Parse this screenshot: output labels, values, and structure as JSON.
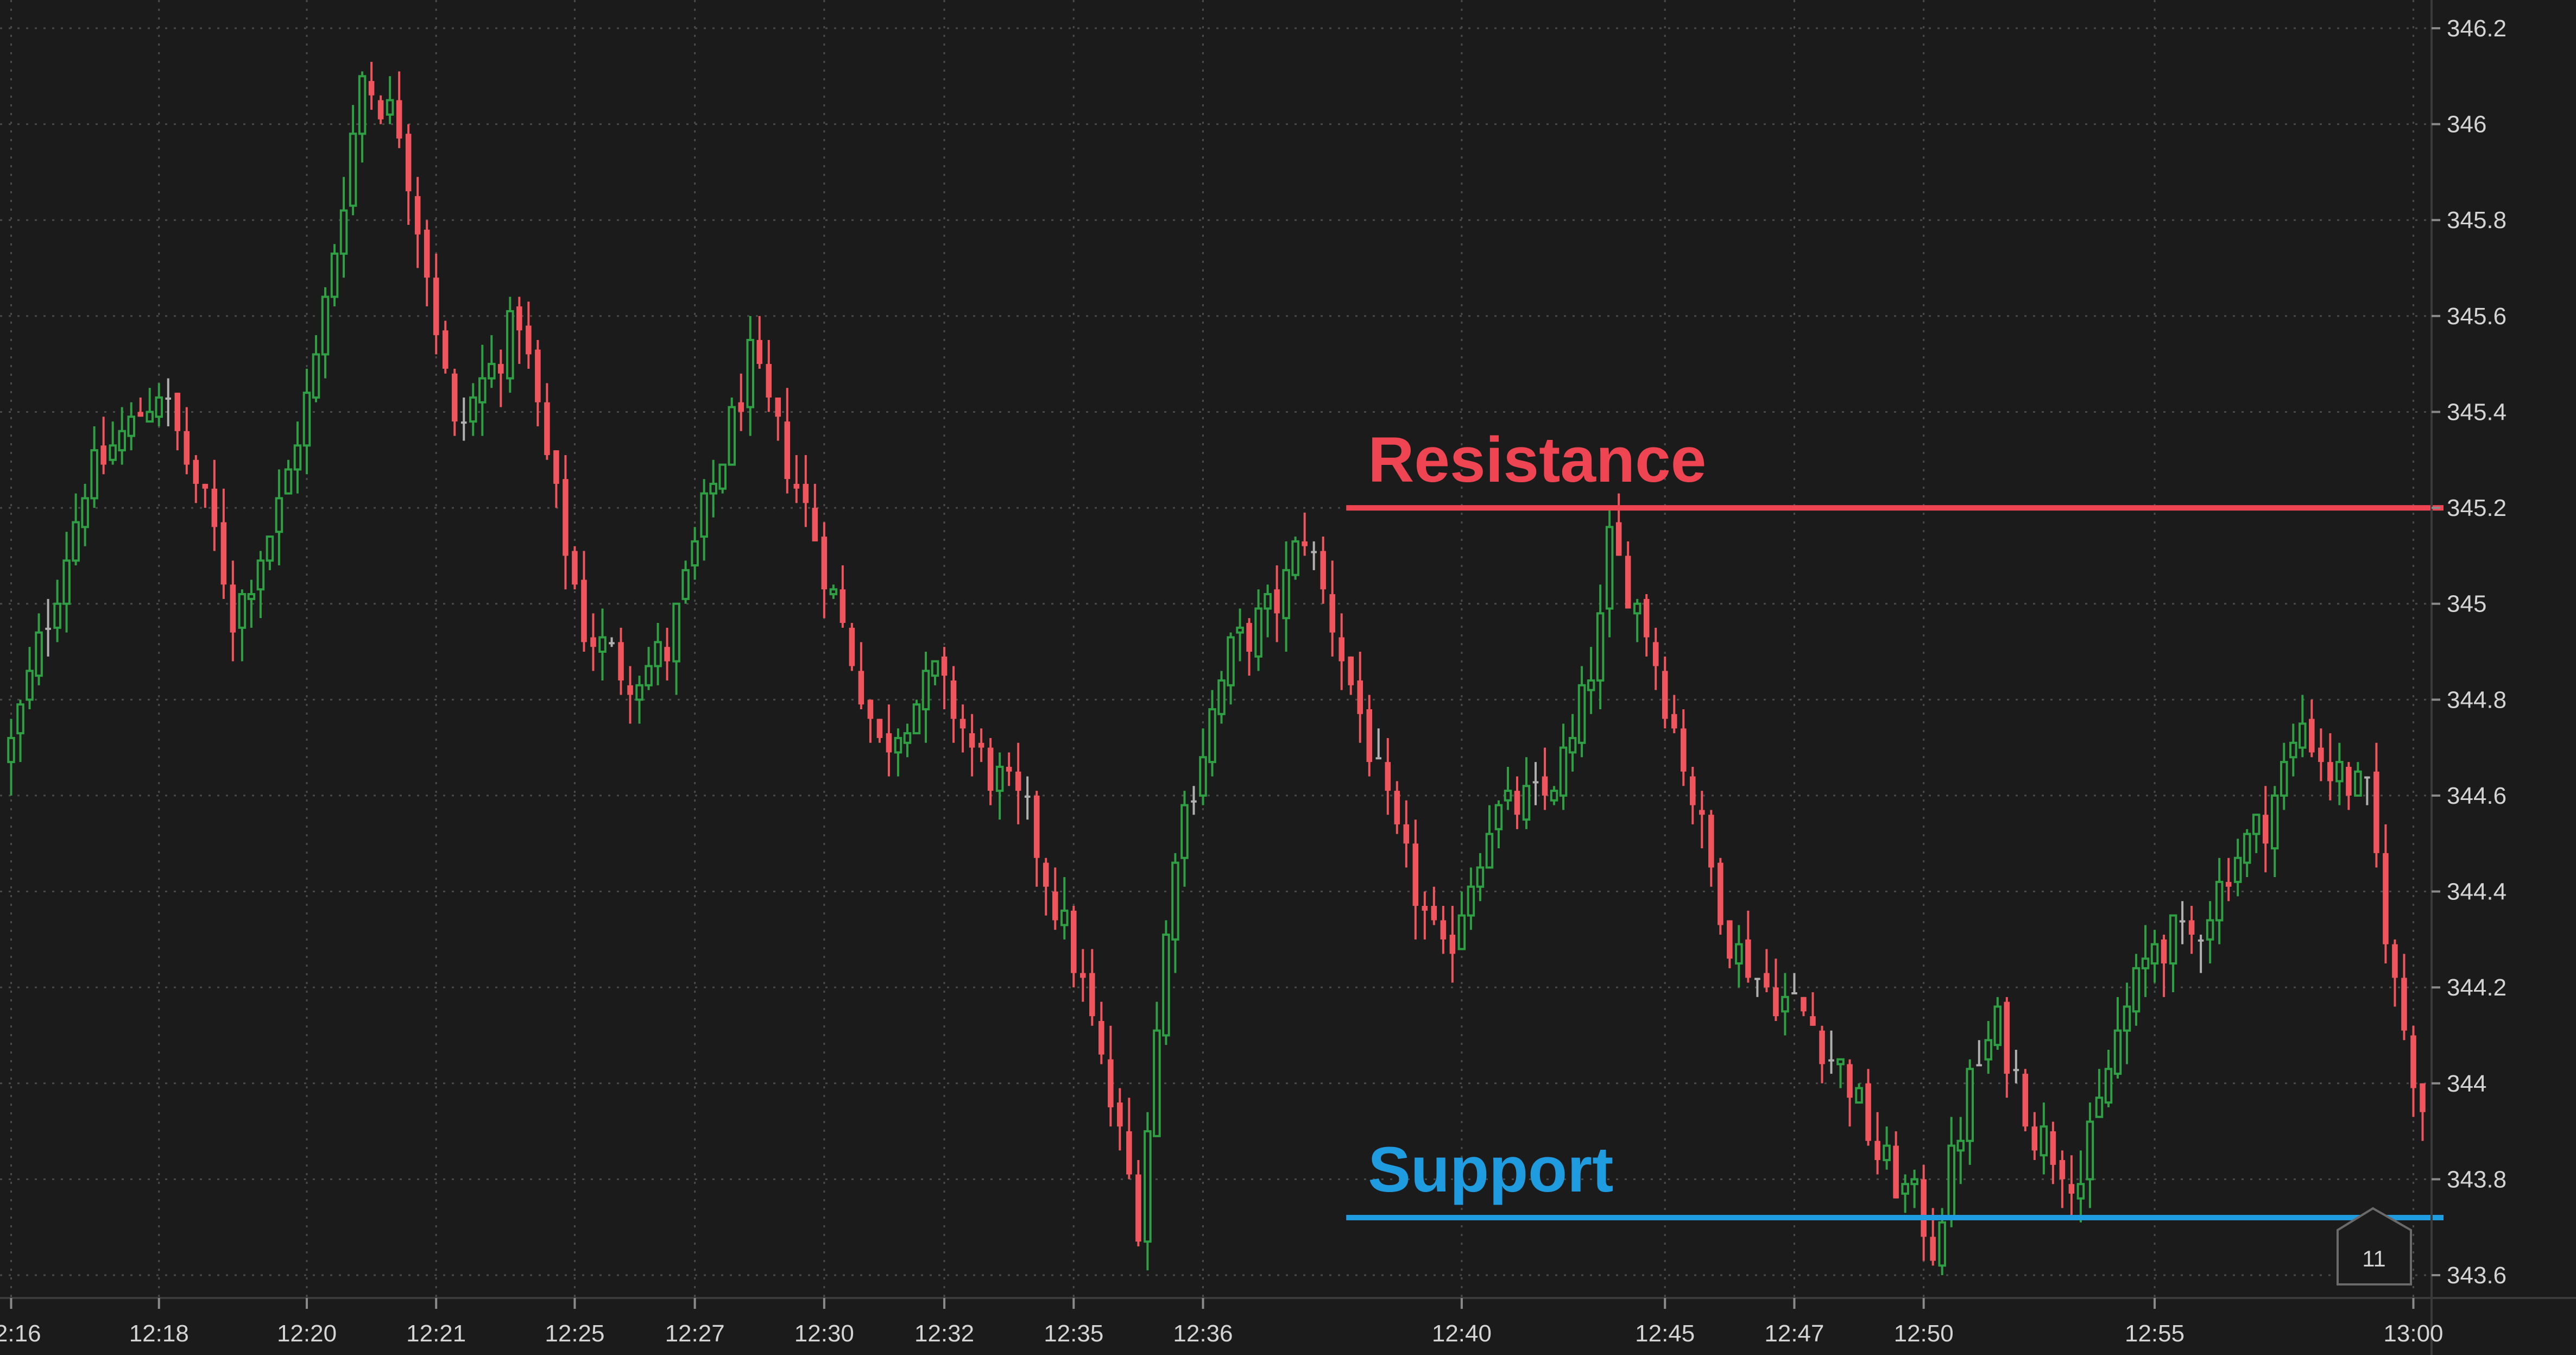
{
  "chart_data": {
    "type": "candlestick",
    "title": "",
    "xlabel": "",
    "ylabel": "",
    "ylim": [
      343.55,
      346.25
    ],
    "grid": true,
    "y_ticks": [
      346.2,
      346,
      345.8,
      345.6,
      345.4,
      345.2,
      345,
      344.8,
      344.6,
      344.4,
      344.2,
      344,
      343.8,
      343.6
    ],
    "y_tick_labels": [
      "346.2",
      "346",
      "345.8",
      "345.6",
      "345.4",
      "345.2",
      "345",
      "344.8",
      "344.6",
      "344.4",
      "344.2",
      "344",
      "343.8",
      "343.6"
    ],
    "x_ticks": [
      {
        "label": "12:16",
        "index": 0
      },
      {
        "label": "12:18",
        "index": 16
      },
      {
        "label": "12:20",
        "index": 32
      },
      {
        "label": "12:21",
        "index": 46
      },
      {
        "label": "12:25",
        "index": 61
      },
      {
        "label": "12:27",
        "index": 74
      },
      {
        "label": "12:30",
        "index": 88
      },
      {
        "label": "12:32",
        "index": 101
      },
      {
        "label": "12:35",
        "index": 115
      },
      {
        "label": "12:36",
        "index": 129
      },
      {
        "label": "12:40",
        "index": 157
      },
      {
        "label": "12:45",
        "index": 179
      },
      {
        "label": "12:47",
        "index": 193
      },
      {
        "label": "12:50",
        "index": 207
      },
      {
        "label": "12:55",
        "index": 232
      },
      {
        "label": "13:00",
        "index": 260
      }
    ],
    "colors": {
      "up": "#2ea043",
      "down": "#f0545c",
      "neutral": "#b0b0b0",
      "background": "#1b1b1b",
      "grid": "#4a4a4a",
      "axis_text": "#d4d4d4"
    },
    "annotations": [
      {
        "label": "Resistance",
        "value": 345.2,
        "color": "#ef4452",
        "from_index": 145
      },
      {
        "label": "Support",
        "value": 343.72,
        "color": "#1f9be0",
        "from_index": 145
      }
    ],
    "badge": "11",
    "candles": []
  },
  "seed": {
    "count": 262,
    "points": [
      [
        0,
        344.7
      ],
      [
        8,
        345.25
      ],
      [
        16,
        345.45
      ],
      [
        22,
        345.15
      ],
      [
        24,
        344.97
      ],
      [
        29,
        345.2
      ],
      [
        33,
        345.5
      ],
      [
        38,
        346.1
      ],
      [
        42,
        346.0
      ],
      [
        45,
        345.7
      ],
      [
        48,
        345.35
      ],
      [
        55,
        345.6
      ],
      [
        58,
        345.3
      ],
      [
        62,
        344.95
      ],
      [
        67,
        344.85
      ],
      [
        71,
        344.9
      ],
      [
        76,
        345.25
      ],
      [
        80,
        345.5
      ],
      [
        86,
        345.2
      ],
      [
        90,
        344.95
      ],
      [
        94,
        344.7
      ],
      [
        100,
        344.85
      ],
      [
        104,
        344.7
      ],
      [
        110,
        344.55
      ],
      [
        116,
        344.2
      ],
      [
        122,
        343.72
      ],
      [
        126,
        344.5
      ],
      [
        132,
        344.9
      ],
      [
        137,
        345.0
      ],
      [
        140,
        345.15
      ],
      [
        144,
        344.9
      ],
      [
        150,
        344.5
      ],
      [
        155,
        344.25
      ],
      [
        160,
        344.55
      ],
      [
        166,
        344.6
      ],
      [
        169,
        344.7
      ],
      [
        172,
        344.95
      ],
      [
        173,
        345.12
      ],
      [
        177,
        344.95
      ],
      [
        182,
        344.6
      ],
      [
        186,
        344.3
      ],
      [
        190,
        344.2
      ],
      [
        194,
        344.15
      ],
      [
        199,
        344.0
      ],
      [
        202,
        343.85
      ],
      [
        206,
        343.75
      ],
      [
        208,
        343.66
      ],
      [
        212,
        344.0
      ],
      [
        215,
        344.12
      ],
      [
        219,
        343.9
      ],
      [
        224,
        343.8
      ],
      [
        228,
        344.1
      ],
      [
        232,
        344.3
      ],
      [
        236,
        344.3
      ],
      [
        240,
        344.45
      ],
      [
        244,
        344.55
      ],
      [
        248,
        344.75
      ],
      [
        251,
        344.65
      ],
      [
        255,
        344.6
      ],
      [
        258,
        344.2
      ],
      [
        261,
        343.95
      ]
    ]
  }
}
